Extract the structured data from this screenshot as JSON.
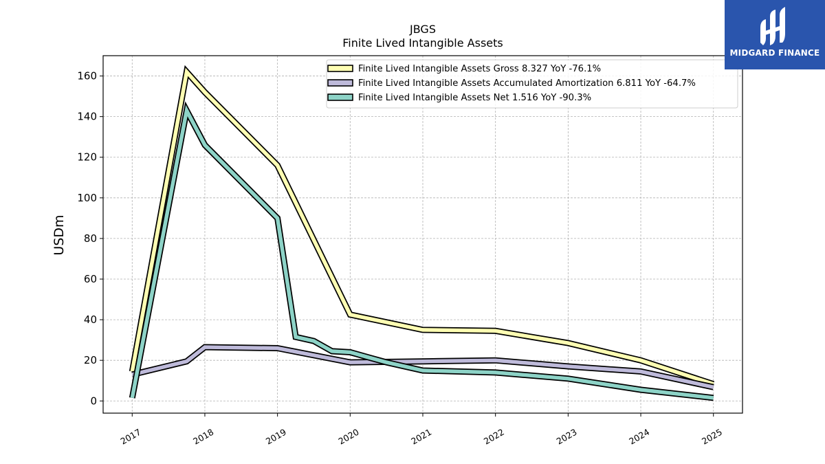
{
  "chart_data": {
    "type": "line",
    "title": "JBGS",
    "subtitle": "Finite Lived Intangible Assets",
    "xlabel": "",
    "ylabel": "USDm",
    "xlim": [
      2016.6,
      2025.4
    ],
    "ylim": [
      -6,
      170
    ],
    "x_ticks": [
      2017,
      2018,
      2019,
      2020,
      2021,
      2022,
      2023,
      2024,
      2025
    ],
    "x_tick_labels": [
      "2017",
      "2018",
      "2019",
      "2020",
      "2021",
      "2022",
      "2023",
      "2024",
      "2025"
    ],
    "y_ticks": [
      0,
      20,
      40,
      60,
      80,
      100,
      120,
      140,
      160
    ],
    "y_tick_labels": [
      "0",
      "20",
      "40",
      "60",
      "80",
      "100",
      "120",
      "140",
      "160"
    ],
    "grid": true,
    "legend_position": "top-right",
    "series": [
      {
        "name": "Finite Lived Intangible Assets Gross  8.327 YoY -76.1%",
        "color": "#ffffb3",
        "x": [
          2017.0,
          2017.75,
          2018.0,
          2019.0,
          2020.0,
          2021.0,
          2022.0,
          2023.0,
          2024.0,
          2025.0
        ],
        "y": [
          14.5,
          162.0,
          152.0,
          116.0,
          42.5,
          35.0,
          34.5,
          28.5,
          20.0,
          8.3
        ]
      },
      {
        "name": "Finite Lived Intangible Assets Accumulated Amortization  6.811 YoY -64.7%",
        "color": "#bebada",
        "x": [
          2017.0,
          2017.75,
          2018.0,
          2019.0,
          2020.0,
          2021.0,
          2022.0,
          2023.0,
          2024.0,
          2025.0
        ],
        "y": [
          13.0,
          19.5,
          26.5,
          26.0,
          19.0,
          19.5,
          20.0,
          17.0,
          14.5,
          6.8
        ]
      },
      {
        "name": "Finite Lived Intangible Assets Net  1.516 YoY -90.3%",
        "color": "#8dd3c7",
        "x": [
          2017.0,
          2017.75,
          2018.0,
          2019.0,
          2019.25,
          2019.5,
          2019.75,
          2020.0,
          2020.25,
          2020.5,
          2021.0,
          2022.0,
          2023.0,
          2024.0,
          2025.0
        ],
        "y": [
          1.5,
          143.0,
          126.0,
          90.0,
          31.5,
          29.5,
          24.5,
          24.0,
          21.5,
          19.0,
          15.0,
          14.0,
          11.0,
          5.5,
          1.5
        ]
      }
    ]
  },
  "logo": {
    "text": "MIDGARD FINANCE",
    "icon": "midgard-logo-icon",
    "background": "#2a55ad"
  }
}
